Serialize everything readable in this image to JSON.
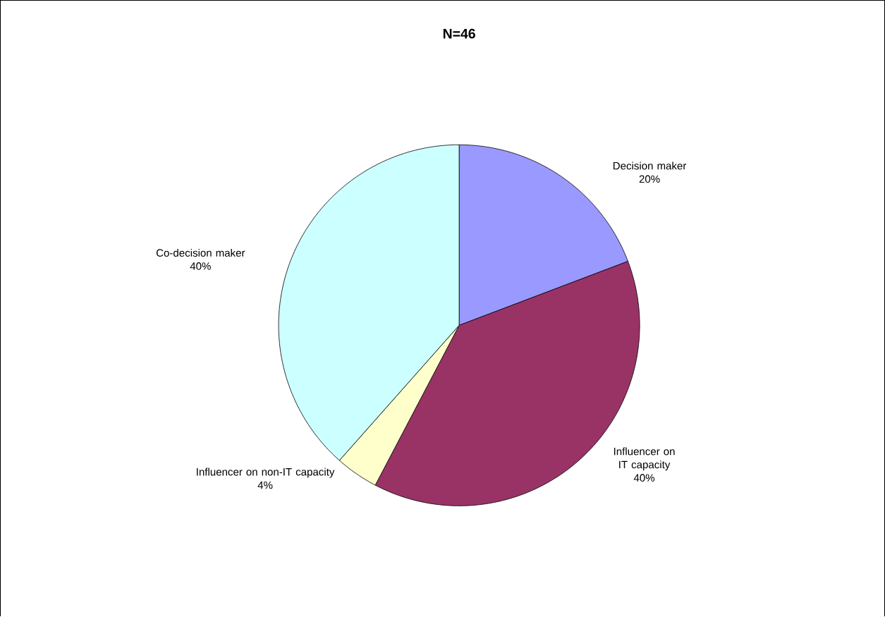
{
  "chart_data": {
    "type": "pie",
    "title": "N=46",
    "categories": [
      "Decision maker",
      "Influencer on IT capacity",
      "Influencer on non-IT capacity",
      "Co-decision maker"
    ],
    "values": [
      20,
      40,
      4,
      40
    ],
    "value_labels": [
      "20%",
      "40%",
      "4%",
      "40%"
    ],
    "colors": [
      "#9999ff",
      "#993366",
      "#ffffcc",
      "#ccffff"
    ]
  }
}
